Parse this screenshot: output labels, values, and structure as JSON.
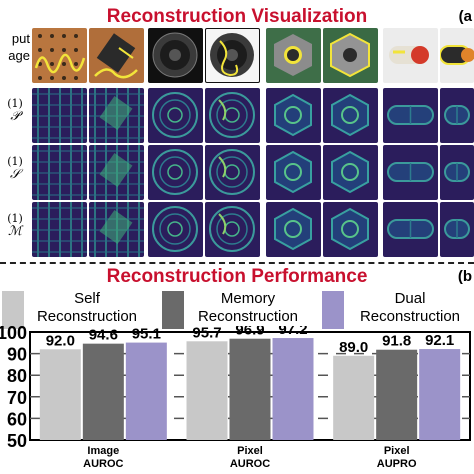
{
  "top": {
    "title": "Reconstruction Visualization",
    "tag": "(a",
    "input_label_1": "put",
    "input_label_2": "age",
    "rows": [
      {
        "sup": "(1)",
        "sym": "𝒫"
      },
      {
        "sup": "(1)",
        "sym": "𝒮"
      },
      {
        "sup": "(1)",
        "sym": "ℳ"
      }
    ]
  },
  "bottom": {
    "title": "Reconstruction Performance",
    "tag": "(b"
  },
  "legend": [
    {
      "line1": "Self",
      "line2": "Reconstruction",
      "color": "#c8c8c8"
    },
    {
      "line1": "Memory",
      "line2": "Reconstruction",
      "color": "#6a6a6a"
    },
    {
      "line1": "Dual",
      "line2": "Reconstruction",
      "color": "#9b93c9"
    }
  ],
  "chart_data": {
    "type": "bar",
    "categories": [
      [
        "Image",
        "AUROC"
      ],
      [
        "Pixel",
        "AUROC"
      ],
      [
        "Pixel",
        "AUPRO"
      ]
    ],
    "series": [
      {
        "name": "Self Reconstruction",
        "values": [
          92.0,
          95.7,
          89.0
        ],
        "color": "#c8c8c8"
      },
      {
        "name": "Memory Reconstruction",
        "values": [
          94.6,
          96.9,
          91.8
        ],
        "color": "#6a6a6a"
      },
      {
        "name": "Dual Reconstruction",
        "values": [
          95.1,
          97.2,
          92.1
        ],
        "color": "#9b93c9"
      }
    ],
    "value_labels": [
      "92.0",
      "94.6",
      "95.1",
      "95.7",
      "96.9",
      "97.2",
      "89.0",
      "91.8",
      "92.1"
    ],
    "ytick_labels": [
      "100",
      "90",
      "80",
      "70",
      "60",
      "50"
    ],
    "ylim": [
      50,
      100
    ],
    "grid": "dashed horizontal"
  }
}
